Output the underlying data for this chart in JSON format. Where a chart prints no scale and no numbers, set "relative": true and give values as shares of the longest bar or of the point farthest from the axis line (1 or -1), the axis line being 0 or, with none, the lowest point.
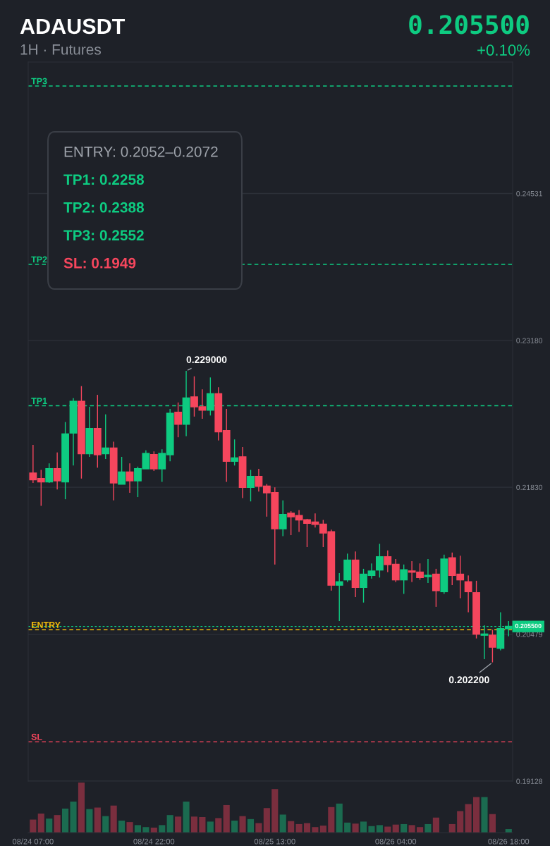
{
  "chart_data": [
    {
      "type": "candlestick",
      "title": "ADAUSDT",
      "subtitle": "1H · Futures",
      "categories": [
        null,
        null,
        null,
        null,
        null,
        null,
        null,
        null,
        null,
        null,
        null,
        null,
        null,
        null,
        null,
        null,
        null,
        null,
        null,
        null,
        null,
        null,
        null,
        null,
        null,
        null,
        null,
        null,
        null,
        null,
        null,
        null,
        null,
        null,
        null,
        null,
        null,
        null,
        null,
        null,
        null,
        null,
        null,
        null,
        null,
        null,
        null,
        null,
        null,
        null,
        null,
        null,
        null,
        null,
        null,
        null,
        null,
        null,
        null,
        null
      ],
      "ohlc": [
        [
          0.2196,
          0.2222,
          0.2187,
          0.219
        ],
        [
          0.2191,
          0.2199,
          0.2166,
          0.2188
        ],
        [
          0.2188,
          0.2205,
          0.2187,
          0.22
        ],
        [
          0.22,
          0.2215,
          0.2181,
          0.2189
        ],
        [
          0.2188,
          0.2243,
          0.2172,
          0.2232
        ],
        [
          0.2233,
          0.2265,
          0.2203,
          0.2262
        ],
        [
          0.2262,
          0.2276,
          0.2191,
          0.2214
        ],
        [
          0.2214,
          0.2257,
          0.2211,
          0.2237
        ],
        [
          0.2237,
          0.2268,
          0.2201,
          0.2213
        ],
        [
          0.2214,
          0.225,
          0.2209,
          0.2219
        ],
        [
          0.2219,
          0.2225,
          0.2171,
          0.2187
        ],
        [
          0.2186,
          0.2211,
          0.2186,
          0.2197
        ],
        [
          0.2197,
          0.2205,
          0.2178,
          0.2189
        ],
        [
          0.2189,
          0.2202,
          0.2174,
          0.22
        ],
        [
          0.22,
          0.2217,
          0.22,
          0.2214
        ],
        [
          0.2213,
          0.2216,
          0.2198,
          0.22
        ],
        [
          0.22,
          0.2218,
          0.2188,
          0.2214
        ],
        [
          0.2213,
          0.2255,
          0.2207,
          0.2251
        ],
        [
          0.2252,
          0.2261,
          0.2229,
          0.2241
        ],
        [
          0.2241,
          0.229,
          0.223,
          0.2265
        ],
        [
          0.2266,
          0.2285,
          0.2248,
          0.2257
        ],
        [
          0.2257,
          0.2273,
          0.2246,
          0.2254
        ],
        [
          0.2254,
          0.2284,
          0.2249,
          0.2269
        ],
        [
          0.2269,
          0.2275,
          0.2226,
          0.2234
        ],
        [
          0.2235,
          0.2255,
          0.2188,
          0.2207
        ],
        [
          0.2207,
          0.2227,
          0.2203,
          0.221
        ],
        [
          0.2211,
          0.222,
          0.2173,
          0.2183
        ],
        [
          0.2183,
          0.2199,
          0.217,
          0.2193
        ],
        [
          0.2193,
          0.22,
          0.2179,
          0.2184
        ],
        [
          0.2184,
          0.2186,
          0.2156,
          0.2178
        ],
        [
          0.2178,
          0.2183,
          0.2112,
          0.2145
        ],
        [
          0.2145,
          0.2171,
          0.2138,
          0.2158
        ],
        [
          0.2159,
          0.2161,
          0.2139,
          0.2156
        ],
        [
          0.2157,
          0.2162,
          0.2142,
          0.2153
        ],
        [
          0.2153,
          0.2154,
          0.2128,
          0.215
        ],
        [
          0.2151,
          0.2159,
          0.2146,
          0.2149
        ],
        [
          0.2149,
          0.2153,
          0.2128,
          0.2141
        ],
        [
          0.2142,
          0.2144,
          0.2088,
          0.2093
        ],
        [
          0.2093,
          0.2104,
          0.206,
          0.2096
        ],
        [
          0.2098,
          0.2122,
          0.2096,
          0.2116
        ],
        [
          0.2116,
          0.2124,
          0.2082,
          0.2091
        ],
        [
          0.2091,
          0.2108,
          0.2077,
          0.2103
        ],
        [
          0.2102,
          0.2113,
          0.2099,
          0.2106
        ],
        [
          0.2107,
          0.2131,
          0.21,
          0.2119
        ],
        [
          0.2119,
          0.2125,
          0.2105,
          0.2112
        ],
        [
          0.2112,
          0.2117,
          0.2096,
          0.2098
        ],
        [
          0.2098,
          0.2112,
          0.2085,
          0.2107
        ],
        [
          0.2106,
          0.2115,
          0.2096,
          0.2105
        ],
        [
          0.2105,
          0.2113,
          0.2098,
          0.21
        ],
        [
          0.2101,
          0.2117,
          0.2095,
          0.2102
        ],
        [
          0.2103,
          0.2108,
          0.2073,
          0.2088
        ],
        [
          0.2087,
          0.2121,
          0.2085,
          0.2117
        ],
        [
          0.2118,
          0.2123,
          0.2093,
          0.2102
        ],
        [
          0.2103,
          0.212,
          0.2081,
          0.2098
        ],
        [
          0.2096,
          0.2102,
          0.2068,
          0.2087
        ],
        [
          0.2086,
          0.2097,
          0.2044,
          0.2048
        ],
        [
          0.2047,
          0.2056,
          0.2025,
          0.2048
        ],
        [
          0.2047,
          0.2052,
          0.2022,
          0.2036
        ],
        [
          0.2035,
          0.2068,
          0.2033,
          0.2053
        ],
        [
          0.2053,
          0.206,
          0.2046,
          0.2055
        ]
      ],
      "ylim": [
        0.19128,
        0.2574
      ],
      "yticks": [
        {
          "value": 0.19128,
          "label": "0.19128"
        },
        {
          "value": 0.20479,
          "label": "0.20479"
        },
        {
          "value": 0.2183,
          "label": "0.21830"
        },
        {
          "value": 0.2318,
          "label": "0.23180"
        },
        {
          "value": 0.24531,
          "label": "0.24531"
        }
      ],
      "grid": "y",
      "tick_labels": "y",
      "ref_lines": [
        {
          "axis": "y",
          "value": 0.2552,
          "label": "TP3",
          "color": "#0ecb81",
          "line_style": "dashed"
        },
        {
          "axis": "y",
          "value": 0.2388,
          "label": "TP2",
          "color": "#0ecb81",
          "line_style": "dashed"
        },
        {
          "axis": "y",
          "value": 0.2258,
          "label": "TP1",
          "color": "#0ecb81",
          "line_style": "dashed"
        },
        {
          "axis": "y",
          "value": 0.2052,
          "label": "ENTRY",
          "color": "#f0b90b",
          "line_style": "dashed"
        },
        {
          "axis": "y",
          "value": 0.1949,
          "label": "SL",
          "color": "#f6465d",
          "line_style": "dashed"
        },
        {
          "axis": "y",
          "value": 0.2055,
          "label": "0.205500",
          "color": "#0ecb81",
          "line_style": "dotted"
        }
      ],
      "annotations": [
        "0.205500",
        "+0.10%",
        "ENTRY: 0.2052–0.2072",
        "TP1: 0.2258",
        "TP2: 0.2388",
        "TP3: 0.2552",
        "SL: 0.1949",
        "0.229000",
        "0.202200"
      ]
    },
    {
      "type": "bar",
      "relative": true,
      "categories": [
        "08/24 07:00",
        null,
        null,
        null,
        null,
        null,
        null,
        null,
        null,
        null,
        null,
        null,
        null,
        null,
        null,
        "08/24 22:00",
        null,
        null,
        null,
        null,
        null,
        null,
        null,
        null,
        null,
        null,
        null,
        null,
        null,
        null,
        "08/25 13:00",
        null,
        null,
        null,
        null,
        null,
        null,
        null,
        null,
        null,
        null,
        null,
        null,
        null,
        null,
        "08/26 04:00",
        null,
        null,
        null,
        null,
        null,
        null,
        null,
        null,
        null,
        null,
        null,
        null,
        null,
        "08/26 18:00"
      ],
      "values": [
        0.26,
        0.38,
        0.28,
        0.35,
        0.48,
        0.62,
        1,
        0.47,
        0.5,
        0.33,
        0.54,
        0.24,
        0.21,
        0.15,
        0.11,
        0.1,
        0.15,
        0.35,
        0.32,
        0.62,
        0.32,
        0.31,
        0.22,
        0.29,
        0.55,
        0.24,
        0.33,
        0.27,
        0.19,
        0.49,
        0.87,
        0.36,
        0.23,
        0.17,
        0.19,
        0.11,
        0.14,
        0.51,
        0.58,
        0.2,
        0.18,
        0.22,
        0.13,
        0.15,
        0.12,
        0.16,
        0.17,
        0.15,
        0.11,
        0.17,
        0.3,
        null,
        0.17,
        0.43,
        0.57,
        0.71,
        0.71,
        0.37,
        null,
        0.07
      ],
      "colors": [
        "#7a2e3e",
        "#7a2e3e",
        "#1b6b50",
        "#7a2e3e",
        "#1b6b50",
        "#1b6b50",
        "#7a2e3e",
        "#1b6b50",
        "#7a2e3e",
        "#1b6b50",
        "#7a2e3e",
        "#1b6b50",
        "#7a2e3e",
        "#1b6b50",
        "#1b6b50",
        "#7a2e3e",
        "#1b6b50",
        "#1b6b50",
        "#7a2e3e",
        "#1b6b50",
        "#7a2e3e",
        "#7a2e3e",
        "#1b6b50",
        "#7a2e3e",
        "#7a2e3e",
        "#1b6b50",
        "#7a2e3e",
        "#1b6b50",
        "#7a2e3e",
        "#7a2e3e",
        "#7a2e3e",
        "#1b6b50",
        "#7a2e3e",
        "#7a2e3e",
        "#7a2e3e",
        "#7a2e3e",
        "#7a2e3e",
        "#7a2e3e",
        "#1b6b50",
        "#1b6b50",
        "#7a2e3e",
        "#1b6b50",
        "#1b6b50",
        "#1b6b50",
        "#7a2e3e",
        "#7a2e3e",
        "#1b6b50",
        "#7a2e3e",
        "#7a2e3e",
        "#1b6b50",
        "#7a2e3e",
        "#1b6b50",
        "#7a2e3e",
        "#7a2e3e",
        "#7a2e3e",
        "#7a2e3e",
        "#1b6b50",
        "#7a2e3e",
        "#1b6b50",
        "#1b6b50"
      ],
      "tick_labels": "x"
    }
  ]
}
